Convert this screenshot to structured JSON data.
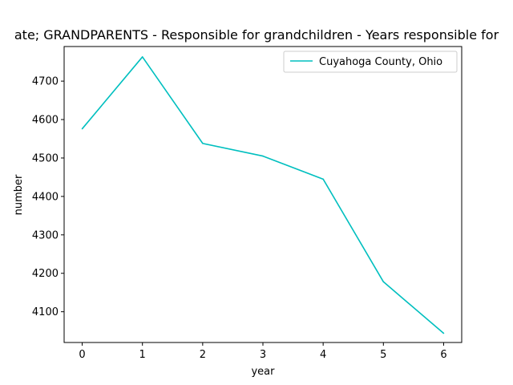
{
  "chart_data": {
    "type": "line",
    "title": "ate; GRANDPARENTS - Responsible for grandchildren - Years responsible for",
    "xlabel": "year",
    "ylabel": "number",
    "x": [
      0,
      1,
      2,
      3,
      4,
      5,
      6
    ],
    "xticks": [
      "0",
      "1",
      "2",
      "3",
      "4",
      "5",
      "6"
    ],
    "yticks": [
      "4100",
      "4200",
      "4300",
      "4400",
      "4500",
      "4600",
      "4700"
    ],
    "xlim": [
      -0.3,
      6.3
    ],
    "ylim": [
      4020,
      4790
    ],
    "grid": false,
    "legend_position": "top-right",
    "series": [
      {
        "name": "Cuyahoga County, Ohio",
        "color": "#00bfbf",
        "values": [
          4576,
          4763,
          4538,
          4505,
          4445,
          4178,
          4044
        ]
      }
    ]
  }
}
